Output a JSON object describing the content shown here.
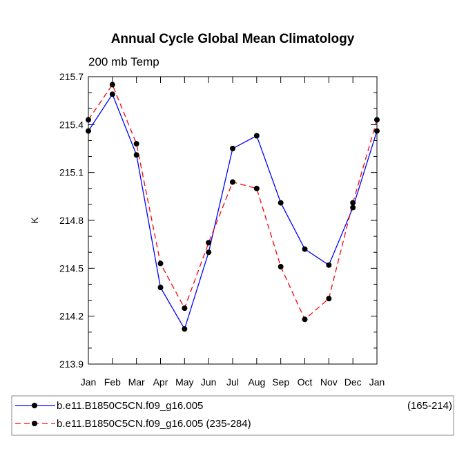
{
  "chart_data": {
    "type": "line",
    "title": "Annual Cycle Global Mean Climatology",
    "subtitle": "200 mb Temp",
    "xlabel": "",
    "ylabel": "K",
    "categories": [
      "Jan",
      "Feb",
      "Mar",
      "Apr",
      "May",
      "Jun",
      "Jul",
      "Aug",
      "Sep",
      "Oct",
      "Nov",
      "Dec",
      "Jan"
    ],
    "ylim": [
      213.9,
      215.7
    ],
    "yticks": [
      213.9,
      214.2,
      214.5,
      214.8,
      215.1,
      215.4,
      215.7
    ],
    "ytick_labels": [
      "213.9",
      "214.2",
      "214.5",
      "214.8",
      "215.1",
      "215.4",
      "215.7"
    ],
    "series": [
      {
        "name": "b.e11.B1850C5CN.f09_g16.005",
        "range_label": "(165-214)",
        "color": "#0000ff",
        "style": "solid",
        "values": [
          215.36,
          215.59,
          215.21,
          214.38,
          214.12,
          214.6,
          215.25,
          215.33,
          214.91,
          214.62,
          214.52,
          214.88,
          215.36
        ]
      },
      {
        "name": "b.e11.B1850C5CN.f09_g16.005 (235-284)",
        "range_label": "",
        "color": "#ff0000",
        "style": "dashed",
        "values": [
          215.43,
          215.65,
          215.28,
          214.53,
          214.25,
          214.66,
          215.04,
          215.0,
          214.51,
          214.18,
          214.31,
          214.91,
          215.43
        ]
      }
    ],
    "grid": false,
    "legend_position": "bottom"
  }
}
